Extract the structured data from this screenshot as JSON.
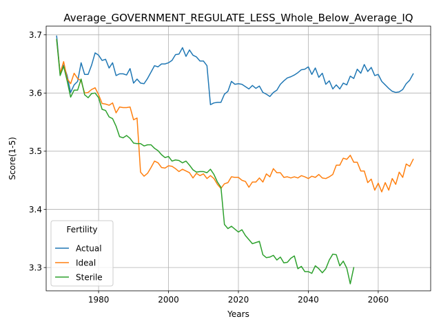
{
  "chart_data": {
    "type": "line",
    "title": "Average_GOVERNMENT_REGULATE_LESS_Whole_Below_Average_IQ",
    "xlabel": "Years",
    "ylabel": "Score(1-5)",
    "xlim": [
      1965,
      2075
    ],
    "ylim": [
      3.26,
      3.715
    ],
    "xticks": [
      1980,
      2000,
      2020,
      2040,
      2060
    ],
    "yticks": [
      3.3,
      3.4,
      3.5,
      3.6,
      3.7
    ],
    "grid": true,
    "legend": {
      "title": "Fertility",
      "placement": "lower-left"
    },
    "series": [
      {
        "name": "Actual",
        "color": "#1f77b4",
        "points": [
          [
            1968,
            3.698
          ],
          [
            1969,
            3.632
          ],
          [
            1970,
            3.648
          ],
          [
            1971,
            3.63
          ],
          [
            1972,
            3.601
          ],
          [
            1973,
            3.614
          ],
          [
            1974,
            3.62
          ],
          [
            1975,
            3.652
          ],
          [
            1976,
            3.632
          ],
          [
            1977,
            3.632
          ],
          [
            1978,
            3.648
          ],
          [
            1979,
            3.669
          ],
          [
            1980,
            3.665
          ],
          [
            1981,
            3.656
          ],
          [
            1982,
            3.658
          ],
          [
            1983,
            3.643
          ],
          [
            1984,
            3.652
          ],
          [
            1985,
            3.63
          ],
          [
            1986,
            3.633
          ],
          [
            1987,
            3.633
          ],
          [
            1988,
            3.631
          ],
          [
            1989,
            3.642
          ],
          [
            1990,
            3.617
          ],
          [
            1991,
            3.624
          ],
          [
            1992,
            3.617
          ],
          [
            1993,
            3.616
          ],
          [
            1994,
            3.625
          ],
          [
            1995,
            3.636
          ],
          [
            1996,
            3.647
          ],
          [
            1997,
            3.645
          ],
          [
            1998,
            3.65
          ],
          [
            1999,
            3.65
          ],
          [
            2000,
            3.652
          ],
          [
            2001,
            3.656
          ],
          [
            2002,
            3.666
          ],
          [
            2003,
            3.667
          ],
          [
            2004,
            3.678
          ],
          [
            2005,
            3.663
          ],
          [
            2006,
            3.674
          ],
          [
            2007,
            3.665
          ],
          [
            2008,
            3.662
          ],
          [
            2009,
            3.655
          ],
          [
            2010,
            3.655
          ],
          [
            2011,
            3.647
          ],
          [
            2012,
            3.58
          ],
          [
            2013,
            3.583
          ],
          [
            2014,
            3.584
          ],
          [
            2015,
            3.584
          ],
          [
            2016,
            3.598
          ],
          [
            2017,
            3.603
          ],
          [
            2018,
            3.62
          ],
          [
            2019,
            3.615
          ],
          [
            2020,
            3.616
          ],
          [
            2021,
            3.615
          ],
          [
            2022,
            3.611
          ],
          [
            2023,
            3.607
          ],
          [
            2024,
            3.613
          ],
          [
            2025,
            3.608
          ],
          [
            2026,
            3.612
          ],
          [
            2027,
            3.601
          ],
          [
            2028,
            3.598
          ],
          [
            2029,
            3.594
          ],
          [
            2030,
            3.601
          ],
          [
            2031,
            3.605
          ],
          [
            2032,
            3.615
          ],
          [
            2033,
            3.621
          ],
          [
            2034,
            3.626
          ],
          [
            2035,
            3.628
          ],
          [
            2036,
            3.631
          ],
          [
            2037,
            3.635
          ],
          [
            2038,
            3.64
          ],
          [
            2039,
            3.641
          ],
          [
            2040,
            3.645
          ],
          [
            2041,
            3.632
          ],
          [
            2042,
            3.643
          ],
          [
            2043,
            3.627
          ],
          [
            2044,
            3.634
          ],
          [
            2045,
            3.615
          ],
          [
            2046,
            3.621
          ],
          [
            2047,
            3.607
          ],
          [
            2048,
            3.614
          ],
          [
            2049,
            3.607
          ],
          [
            2050,
            3.617
          ],
          [
            2051,
            3.614
          ],
          [
            2052,
            3.629
          ],
          [
            2053,
            3.625
          ],
          [
            2054,
            3.641
          ],
          [
            2055,
            3.634
          ],
          [
            2056,
            3.649
          ],
          [
            2057,
            3.637
          ],
          [
            2058,
            3.644
          ],
          [
            2059,
            3.63
          ],
          [
            2060,
            3.632
          ],
          [
            2061,
            3.62
          ],
          [
            2062,
            3.614
          ],
          [
            2063,
            3.608
          ],
          [
            2064,
            3.603
          ],
          [
            2065,
            3.601
          ],
          [
            2066,
            3.602
          ],
          [
            2067,
            3.606
          ],
          [
            2068,
            3.616
          ],
          [
            2069,
            3.622
          ],
          [
            2070,
            3.633
          ]
        ]
      },
      {
        "name": "Ideal",
        "color": "#ff7f0e",
        "points": [
          [
            1968,
            3.692
          ],
          [
            1969,
            3.634
          ],
          [
            1970,
            3.654
          ],
          [
            1971,
            3.625
          ],
          [
            1972,
            3.616
          ],
          [
            1973,
            3.634
          ],
          [
            1974,
            3.625
          ],
          [
            1975,
            3.621
          ],
          [
            1976,
            3.6
          ],
          [
            1977,
            3.601
          ],
          [
            1978,
            3.606
          ],
          [
            1979,
            3.609
          ],
          [
            1980,
            3.597
          ],
          [
            1981,
            3.582
          ],
          [
            1982,
            3.581
          ],
          [
            1983,
            3.579
          ],
          [
            1984,
            3.583
          ],
          [
            1985,
            3.566
          ],
          [
            1986,
            3.576
          ],
          [
            1987,
            3.575
          ],
          [
            1988,
            3.575
          ],
          [
            1989,
            3.576
          ],
          [
            1990,
            3.554
          ],
          [
            1991,
            3.557
          ],
          [
            1992,
            3.464
          ],
          [
            1993,
            3.457
          ],
          [
            1994,
            3.462
          ],
          [
            1995,
            3.472
          ],
          [
            1996,
            3.483
          ],
          [
            1997,
            3.48
          ],
          [
            1998,
            3.472
          ],
          [
            1999,
            3.471
          ],
          [
            2000,
            3.475
          ],
          [
            2001,
            3.474
          ],
          [
            2002,
            3.47
          ],
          [
            2003,
            3.465
          ],
          [
            2004,
            3.469
          ],
          [
            2005,
            3.466
          ],
          [
            2006,
            3.463
          ],
          [
            2007,
            3.454
          ],
          [
            2008,
            3.462
          ],
          [
            2009,
            3.458
          ],
          [
            2010,
            3.461
          ],
          [
            2011,
            3.453
          ],
          [
            2012,
            3.458
          ],
          [
            2013,
            3.453
          ],
          [
            2014,
            3.443
          ],
          [
            2015,
            3.436
          ],
          [
            2016,
            3.444
          ],
          [
            2017,
            3.446
          ],
          [
            2018,
            3.456
          ],
          [
            2019,
            3.455
          ],
          [
            2020,
            3.455
          ],
          [
            2021,
            3.45
          ],
          [
            2022,
            3.448
          ],
          [
            2023,
            3.438
          ],
          [
            2024,
            3.447
          ],
          [
            2025,
            3.447
          ],
          [
            2026,
            3.454
          ],
          [
            2027,
            3.447
          ],
          [
            2028,
            3.461
          ],
          [
            2029,
            3.456
          ],
          [
            2030,
            3.47
          ],
          [
            2031,
            3.463
          ],
          [
            2032,
            3.463
          ],
          [
            2033,
            3.455
          ],
          [
            2034,
            3.456
          ],
          [
            2035,
            3.454
          ],
          [
            2036,
            3.456
          ],
          [
            2037,
            3.454
          ],
          [
            2038,
            3.458
          ],
          [
            2039,
            3.456
          ],
          [
            2040,
            3.453
          ],
          [
            2041,
            3.457
          ],
          [
            2042,
            3.455
          ],
          [
            2043,
            3.46
          ],
          [
            2044,
            3.454
          ],
          [
            2045,
            3.453
          ],
          [
            2046,
            3.456
          ],
          [
            2047,
            3.46
          ],
          [
            2048,
            3.476
          ],
          [
            2049,
            3.476
          ],
          [
            2050,
            3.488
          ],
          [
            2051,
            3.486
          ],
          [
            2052,
            3.493
          ],
          [
            2053,
            3.481
          ],
          [
            2054,
            3.481
          ],
          [
            2055,
            3.466
          ],
          [
            2056,
            3.466
          ],
          [
            2057,
            3.446
          ],
          [
            2058,
            3.452
          ],
          [
            2059,
            3.433
          ],
          [
            2060,
            3.445
          ],
          [
            2061,
            3.43
          ],
          [
            2062,
            3.446
          ],
          [
            2063,
            3.433
          ],
          [
            2064,
            3.453
          ],
          [
            2065,
            3.443
          ],
          [
            2066,
            3.464
          ],
          [
            2067,
            3.455
          ],
          [
            2068,
            3.478
          ],
          [
            2069,
            3.474
          ],
          [
            2070,
            3.486
          ]
        ]
      },
      {
        "name": "Sterile",
        "color": "#2ca02c",
        "points": [
          [
            1968,
            3.692
          ],
          [
            1969,
            3.63
          ],
          [
            1970,
            3.646
          ],
          [
            1971,
            3.621
          ],
          [
            1972,
            3.593
          ],
          [
            1973,
            3.605
          ],
          [
            1974,
            3.605
          ],
          [
            1975,
            3.624
          ],
          [
            1976,
            3.597
          ],
          [
            1977,
            3.592
          ],
          [
            1978,
            3.599
          ],
          [
            1979,
            3.6
          ],
          [
            1980,
            3.592
          ],
          [
            1981,
            3.572
          ],
          [
            1982,
            3.57
          ],
          [
            1983,
            3.559
          ],
          [
            1984,
            3.556
          ],
          [
            1985,
            3.543
          ],
          [
            1986,
            3.525
          ],
          [
            1987,
            3.523
          ],
          [
            1988,
            3.527
          ],
          [
            1989,
            3.522
          ],
          [
            1990,
            3.514
          ],
          [
            1991,
            3.513
          ],
          [
            1992,
            3.513
          ],
          [
            1993,
            3.509
          ],
          [
            1994,
            3.511
          ],
          [
            1995,
            3.511
          ],
          [
            1996,
            3.505
          ],
          [
            1997,
            3.501
          ],
          [
            1998,
            3.494
          ],
          [
            1999,
            3.489
          ],
          [
            2000,
            3.491
          ],
          [
            2001,
            3.483
          ],
          [
            2002,
            3.485
          ],
          [
            2003,
            3.484
          ],
          [
            2004,
            3.48
          ],
          [
            2005,
            3.483
          ],
          [
            2006,
            3.476
          ],
          [
            2007,
            3.468
          ],
          [
            2008,
            3.464
          ],
          [
            2009,
            3.465
          ],
          [
            2010,
            3.465
          ],
          [
            2011,
            3.463
          ],
          [
            2012,
            3.469
          ],
          [
            2013,
            3.46
          ],
          [
            2014,
            3.447
          ],
          [
            2015,
            3.438
          ],
          [
            2016,
            3.374
          ],
          [
            2017,
            3.367
          ],
          [
            2018,
            3.371
          ],
          [
            2019,
            3.366
          ],
          [
            2020,
            3.361
          ],
          [
            2021,
            3.365
          ],
          [
            2022,
            3.355
          ],
          [
            2023,
            3.348
          ],
          [
            2024,
            3.341
          ],
          [
            2025,
            3.343
          ],
          [
            2026,
            3.345
          ],
          [
            2027,
            3.322
          ],
          [
            2028,
            3.317
          ],
          [
            2029,
            3.318
          ],
          [
            2030,
            3.321
          ],
          [
            2031,
            3.313
          ],
          [
            2032,
            3.318
          ],
          [
            2033,
            3.308
          ],
          [
            2034,
            3.309
          ],
          [
            2035,
            3.316
          ],
          [
            2036,
            3.32
          ],
          [
            2037,
            3.298
          ],
          [
            2038,
            3.302
          ],
          [
            2039,
            3.293
          ],
          [
            2040,
            3.293
          ],
          [
            2041,
            3.29
          ],
          [
            2042,
            3.303
          ],
          [
            2043,
            3.298
          ],
          [
            2044,
            3.291
          ],
          [
            2045,
            3.298
          ],
          [
            2046,
            3.313
          ],
          [
            2047,
            3.323
          ],
          [
            2048,
            3.322
          ],
          [
            2049,
            3.303
          ],
          [
            2050,
            3.311
          ],
          [
            2051,
            3.299
          ],
          [
            2052,
            3.272
          ],
          [
            2053,
            3.3
          ]
        ]
      }
    ]
  }
}
